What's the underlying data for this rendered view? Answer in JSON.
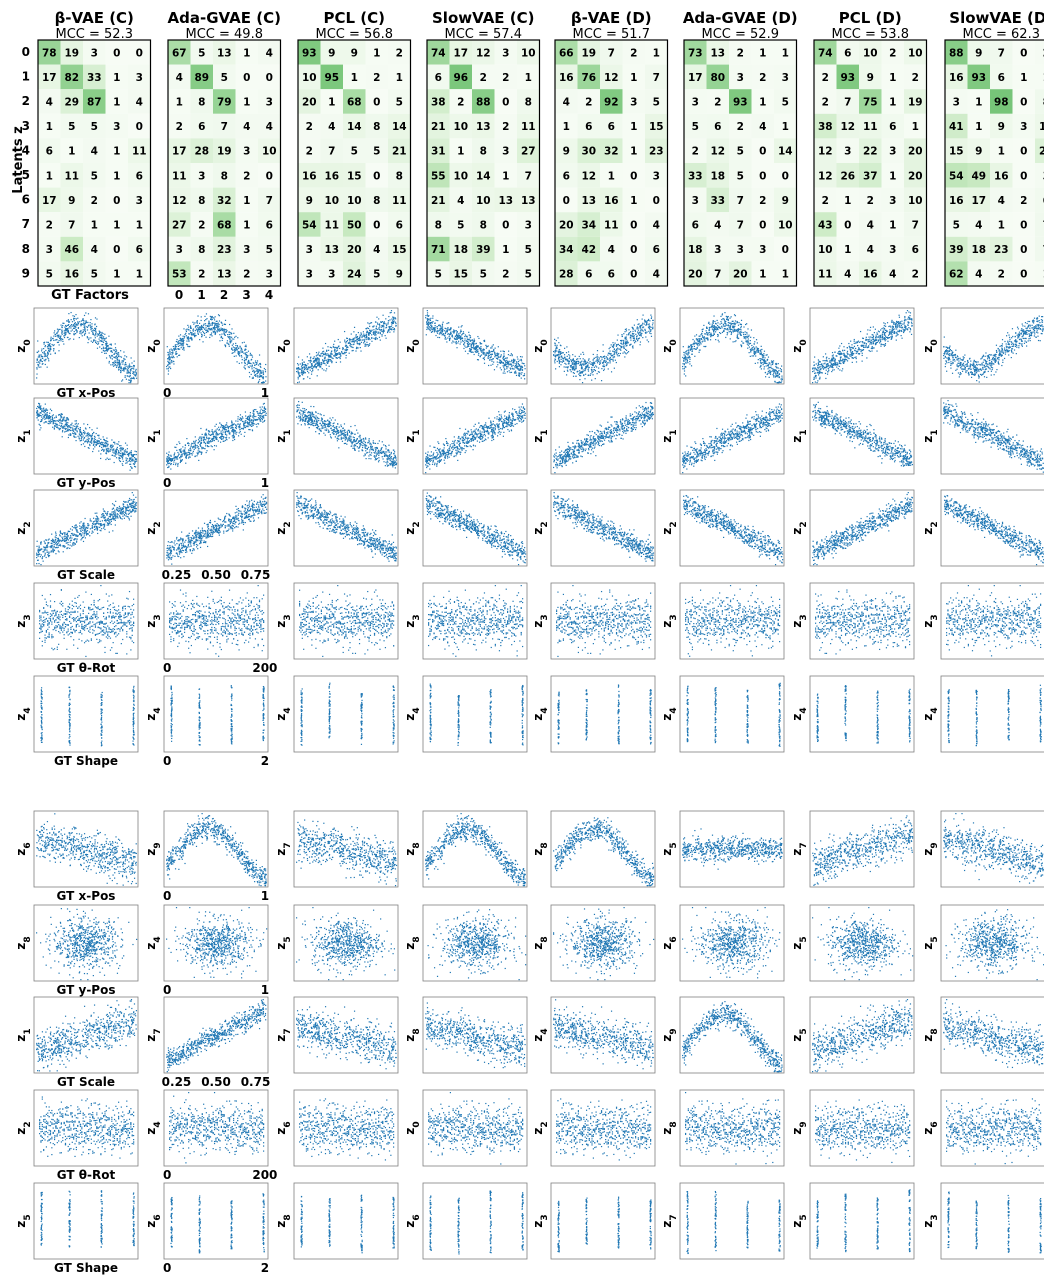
{
  "figure": {
    "heatmap_ylabel": "Latents z",
    "heatmap_xlabel": "GT Factors",
    "heatmap_xticks": [
      "0",
      "1",
      "2",
      "3",
      "4"
    ],
    "latent_row_labels": [
      "0",
      "1",
      "2",
      "3",
      "4",
      "5",
      "6",
      "7",
      "8",
      "9"
    ],
    "row_labels": [
      "GT x-Pos",
      "GT y-Pos",
      "GT Scale",
      "GT θ-Rot",
      "GT Shape"
    ],
    "x_ticks": [
      [
        "0",
        "1"
      ],
      [
        "0",
        "1"
      ],
      [
        "0.25",
        "0.50",
        "0.75"
      ],
      [
        "0",
        "200"
      ],
      [
        "0",
        "2"
      ]
    ]
  },
  "chart_data": {
    "type": "heatmap",
    "cmap": [
      "#f7fcf5",
      "#c7e9c0",
      "#74c476"
    ],
    "scatter_color": "#1f77b4",
    "models": [
      {
        "title": "β-VAE (C)",
        "mcc_label": "MCC = 52.3",
        "mcc": 52.3,
        "matrix": [
          [
            78,
            19,
            3,
            0,
            0
          ],
          [
            17,
            82,
            33,
            1,
            3
          ],
          [
            4,
            29,
            87,
            1,
            4
          ],
          [
            1,
            5,
            5,
            3,
            0
          ],
          [
            6,
            1,
            4,
            1,
            11
          ],
          [
            1,
            11,
            5,
            1,
            6
          ],
          [
            17,
            9,
            2,
            0,
            3
          ],
          [
            2,
            7,
            1,
            1,
            1
          ],
          [
            3,
            46,
            4,
            0,
            6
          ],
          [
            5,
            16,
            5,
            1,
            1
          ]
        ],
        "top_latents": [
          "0",
          "1",
          "2",
          "3",
          "4"
        ],
        "top_shapes": [
          "sine",
          "neg",
          "pos",
          "noise",
          "shape"
        ],
        "bottom_latents": [
          "6",
          "8",
          "1",
          "2",
          "5"
        ],
        "bottom_shapes": [
          "negweak",
          "blob",
          "posweak",
          "noise",
          "shape"
        ]
      },
      {
        "title": "Ada-GVAE (C)",
        "mcc_label": "MCC = 49.8",
        "mcc": 49.8,
        "matrix": [
          [
            67,
            5,
            13,
            1,
            4
          ],
          [
            4,
            89,
            5,
            0,
            0
          ],
          [
            1,
            8,
            79,
            1,
            3
          ],
          [
            2,
            6,
            7,
            4,
            4
          ],
          [
            17,
            28,
            19,
            3,
            10
          ],
          [
            11,
            3,
            8,
            2,
            0
          ],
          [
            12,
            8,
            32,
            1,
            7
          ],
          [
            27,
            2,
            68,
            1,
            6
          ],
          [
            3,
            8,
            23,
            3,
            5
          ],
          [
            53,
            2,
            13,
            2,
            3
          ]
        ],
        "top_latents": [
          "0",
          "1",
          "2",
          "3",
          "4"
        ],
        "top_shapes": [
          "sine",
          "pos",
          "pos",
          "noise",
          "shape"
        ],
        "bottom_latents": [
          "9",
          "4",
          "7",
          "4",
          "6"
        ],
        "bottom_shapes": [
          "sine",
          "blob",
          "pos",
          "noise",
          "shape"
        ]
      },
      {
        "title": "PCL (C)",
        "mcc_label": "MCC = 56.8",
        "mcc": 56.8,
        "matrix": [
          [
            93,
            9,
            9,
            1,
            2
          ],
          [
            10,
            95,
            1,
            2,
            1
          ],
          [
            20,
            1,
            68,
            0,
            5
          ],
          [
            2,
            4,
            14,
            8,
            14
          ],
          [
            2,
            7,
            5,
            5,
            21
          ],
          [
            16,
            16,
            15,
            0,
            8
          ],
          [
            9,
            10,
            10,
            8,
            11
          ],
          [
            54,
            11,
            50,
            0,
            6
          ],
          [
            3,
            13,
            20,
            4,
            15
          ],
          [
            3,
            3,
            24,
            5,
            9
          ]
        ],
        "top_latents": [
          "0",
          "1",
          "2",
          "3",
          "4"
        ],
        "top_shapes": [
          "pos",
          "neg",
          "neg",
          "noise",
          "shape"
        ],
        "bottom_latents": [
          "7",
          "5",
          "7",
          "6",
          "8"
        ],
        "bottom_shapes": [
          "negweak",
          "blob",
          "negweak",
          "noise",
          "shape"
        ]
      },
      {
        "title": "SlowVAE (C)",
        "mcc_label": "MCC = 57.4",
        "mcc": 57.4,
        "matrix": [
          [
            74,
            17,
            12,
            3,
            10
          ],
          [
            6,
            96,
            2,
            2,
            1
          ],
          [
            38,
            2,
            88,
            0,
            8
          ],
          [
            21,
            10,
            13,
            2,
            11
          ],
          [
            31,
            1,
            8,
            3,
            27
          ],
          [
            55,
            10,
            14,
            1,
            7
          ],
          [
            21,
            4,
            10,
            13,
            13
          ],
          [
            8,
            5,
            8,
            0,
            3
          ],
          [
            71,
            18,
            39,
            1,
            5
          ],
          [
            5,
            15,
            5,
            2,
            5
          ]
        ],
        "top_latents": [
          "0",
          "1",
          "2",
          "3",
          "4"
        ],
        "top_shapes": [
          "neg",
          "pos",
          "neg",
          "noise",
          "shape"
        ],
        "bottom_latents": [
          "8",
          "8",
          "8",
          "0",
          "6"
        ],
        "bottom_shapes": [
          "sine",
          "blob",
          "negweak",
          "noise",
          "shape"
        ]
      },
      {
        "title": "β-VAE (D)",
        "mcc_label": "MCC = 51.7",
        "mcc": 51.7,
        "matrix": [
          [
            66,
            19,
            7,
            2,
            1
          ],
          [
            16,
            76,
            12,
            1,
            7
          ],
          [
            4,
            2,
            92,
            3,
            5
          ],
          [
            1,
            6,
            6,
            1,
            15
          ],
          [
            9,
            30,
            32,
            1,
            23
          ],
          [
            6,
            12,
            1,
            0,
            3
          ],
          [
            0,
            13,
            16,
            1,
            0
          ],
          [
            20,
            34,
            11,
            0,
            4
          ],
          [
            34,
            42,
            4,
            0,
            6
          ],
          [
            28,
            6,
            6,
            0,
            4
          ]
        ],
        "top_latents": [
          "0",
          "1",
          "2",
          "3",
          "4"
        ],
        "top_shapes": [
          "negsine",
          "pos",
          "neg",
          "noise",
          "shape"
        ],
        "bottom_latents": [
          "8",
          "8",
          "4",
          "2",
          "3"
        ],
        "bottom_shapes": [
          "sine",
          "blob",
          "negweak",
          "noise",
          "shape"
        ]
      },
      {
        "title": "Ada-GVAE (D)",
        "mcc_label": "MCC = 52.9",
        "mcc": 52.9,
        "matrix": [
          [
            73,
            13,
            2,
            1,
            1
          ],
          [
            17,
            80,
            3,
            2,
            3
          ],
          [
            3,
            2,
            93,
            1,
            5
          ],
          [
            5,
            6,
            2,
            4,
            1
          ],
          [
            2,
            12,
            5,
            0,
            14
          ],
          [
            33,
            18,
            5,
            0,
            0
          ],
          [
            3,
            33,
            7,
            2,
            9
          ],
          [
            6,
            4,
            7,
            0,
            10
          ],
          [
            18,
            3,
            3,
            3,
            0
          ],
          [
            20,
            7,
            20,
            1,
            1
          ]
        ],
        "top_latents": [
          "0",
          "1",
          "2",
          "3",
          "4"
        ],
        "top_shapes": [
          "sine",
          "pos",
          "neg",
          "noise",
          "shape"
        ],
        "bottom_latents": [
          "5",
          "6",
          "9",
          "8",
          "7"
        ],
        "bottom_shapes": [
          "flat",
          "blob",
          "sine",
          "noise",
          "shape"
        ]
      },
      {
        "title": "PCL (D)",
        "mcc_label": "MCC = 53.8",
        "mcc": 53.8,
        "matrix": [
          [
            74,
            6,
            10,
            2,
            10
          ],
          [
            2,
            93,
            9,
            1,
            2
          ],
          [
            2,
            7,
            75,
            1,
            19
          ],
          [
            38,
            12,
            11,
            6,
            1
          ],
          [
            12,
            3,
            22,
            3,
            20
          ],
          [
            12,
            26,
            37,
            1,
            20
          ],
          [
            2,
            1,
            2,
            3,
            10
          ],
          [
            43,
            0,
            4,
            1,
            7
          ],
          [
            10,
            1,
            4,
            3,
            6
          ],
          [
            11,
            4,
            16,
            4,
            2
          ]
        ],
        "top_latents": [
          "0",
          "1",
          "2",
          "3",
          "4"
        ],
        "top_shapes": [
          "pos",
          "neg",
          "pos",
          "noise",
          "shape"
        ],
        "bottom_latents": [
          "7",
          "5",
          "5",
          "9",
          "5"
        ],
        "bottom_shapes": [
          "posweak",
          "blob",
          "posweak",
          "noise",
          "shape"
        ]
      },
      {
        "title": "SlowVAE (D)",
        "mcc_label": "MCC = 62.3",
        "mcc": 62.3,
        "matrix": [
          [
            88,
            9,
            7,
            0,
            2
          ],
          [
            16,
            93,
            6,
            1,
            1
          ],
          [
            3,
            1,
            98,
            0,
            8
          ],
          [
            41,
            1,
            9,
            3,
            10
          ],
          [
            15,
            9,
            1,
            0,
            29
          ],
          [
            54,
            49,
            16,
            0,
            3
          ],
          [
            16,
            17,
            4,
            2,
            6
          ],
          [
            5,
            4,
            1,
            0,
            7
          ],
          [
            39,
            18,
            23,
            0,
            7
          ],
          [
            62,
            4,
            2,
            0,
            1
          ]
        ],
        "top_latents": [
          "0",
          "1",
          "2",
          "3",
          "4"
        ],
        "top_shapes": [
          "negsine",
          "neg",
          "neg",
          "noise",
          "shape"
        ],
        "bottom_latents": [
          "9",
          "5",
          "8",
          "6",
          "3"
        ],
        "bottom_shapes": [
          "negweak",
          "blob",
          "negweak",
          "noise",
          "shape"
        ]
      }
    ]
  }
}
